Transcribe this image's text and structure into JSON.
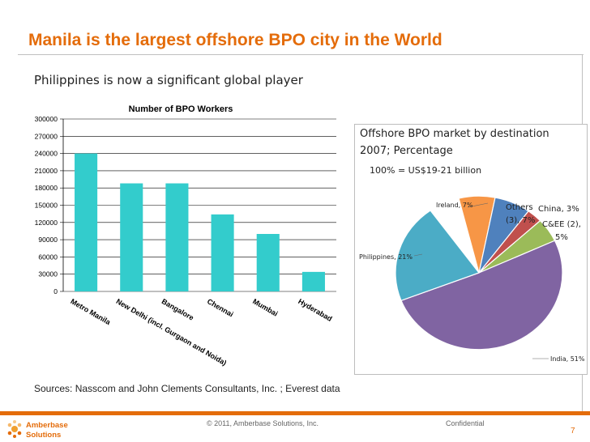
{
  "slide": {
    "title": "Manila is the largest offshore BPO city in the World",
    "subtitle": "Philippines is now a significant global player",
    "sources": "Sources: Nasscom and John Clements Consultants, Inc. ; Everest data",
    "footer": {
      "copyright": "© 2011, Amberbase Solutions, Inc.",
      "confidential": "Confidential",
      "page_number": "7",
      "logo_text": [
        "Amberbase",
        "Solutions"
      ]
    },
    "colors": {
      "accent": "#e46c0a",
      "bar": "#33cccc"
    }
  },
  "chart_data": [
    {
      "type": "bar",
      "title": "Number of BPO Workers",
      "categories": [
        "Metro Manila",
        "New Delhi (incl. Gurgaon and Noida)",
        "Bangalore",
        "Chennai",
        "Mumbai",
        "Hyderabad"
      ],
      "values": [
        240000,
        188000,
        188000,
        134000,
        100000,
        34000
      ],
      "ylim": [
        0,
        300000
      ],
      "yticks": [
        "0",
        "30000",
        "60000",
        "90000",
        "120000",
        "150000",
        "180000",
        "210000",
        "240000",
        "270000",
        "300000"
      ],
      "grid": true,
      "xlabel": "",
      "ylabel": ""
    },
    {
      "type": "pie",
      "title": "Offshore BPO market by destination",
      "subtitle": "2007; Percentage",
      "note": "100% = US$19-21  billion",
      "slices": [
        {
          "label": "India, 51%",
          "value": 51,
          "color": "#8064a2"
        },
        {
          "label": "Philippines, 21%",
          "value": 21,
          "color": "#4bacc6"
        },
        {
          "label": "Ireland, 7%",
          "value": 7,
          "color": "#f79646"
        },
        {
          "label": "Others (3), 7%",
          "value": 7,
          "color": "#4f81bd"
        },
        {
          "label": "China, 3%",
          "value": 3,
          "color": "#c0504d"
        },
        {
          "label": "C&EE (2), 5%",
          "value": 5,
          "color": "#9bbb59"
        }
      ]
    }
  ]
}
